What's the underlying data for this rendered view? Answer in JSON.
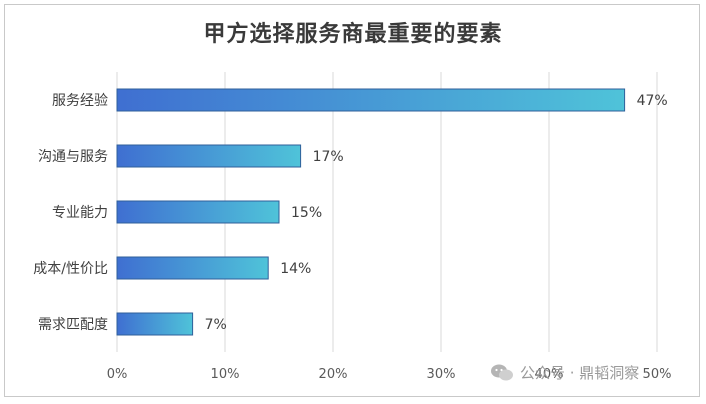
{
  "chart_data": {
    "type": "bar",
    "orientation": "horizontal",
    "title": "甲方选择服务商最重要的要素",
    "categories": [
      "服务经验",
      "沟通与服务",
      "专业能力",
      "成本/性价比",
      "需求匹配度"
    ],
    "values": [
      47,
      17,
      15,
      14,
      7
    ],
    "value_labels": [
      "47%",
      "17%",
      "15%",
      "14%",
      "7%"
    ],
    "xlim": [
      0,
      50
    ],
    "xticks": [
      0,
      10,
      20,
      30,
      40,
      50
    ],
    "xtick_labels": [
      "0%",
      "10%",
      "20%",
      "30%",
      "40%",
      "50%"
    ],
    "grid": "vertical",
    "colors": {
      "bar_start": "#3f6fd1",
      "bar_end": "#4fc3d9",
      "bar_stroke": "#2f5f9a",
      "grid": "#d9d9d9"
    }
  },
  "watermark": {
    "text": "公众号 · 鼎韬洞察"
  }
}
